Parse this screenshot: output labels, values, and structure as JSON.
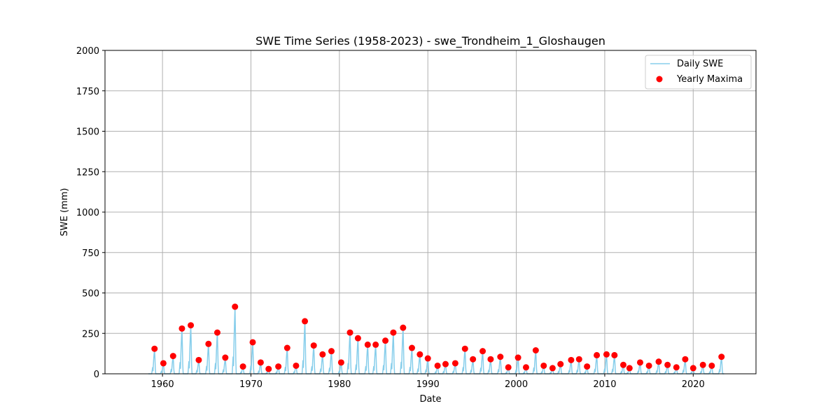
{
  "chart_data": {
    "type": "line",
    "title": "SWE Time Series (1958-2023) - swe_Trondheim_1_Gloshaugen",
    "xlabel": "Date",
    "ylabel": "SWE (mm)",
    "xlim": [
      1953.5,
      2027.1
    ],
    "ylim": [
      0,
      2000
    ],
    "x_ticks": [
      1960,
      1970,
      1980,
      1990,
      2000,
      2010,
      2020
    ],
    "y_ticks": [
      0,
      250,
      500,
      750,
      1000,
      1250,
      1500,
      1750,
      2000
    ],
    "grid": true,
    "legend_position": "top-right",
    "colors": {
      "daily": "#87ceeb",
      "maxima": "#ff0000"
    },
    "series": [
      {
        "name": "Daily SWE",
        "kind": "line",
        "peaks": [
          [
            1959.1,
            155
          ],
          [
            1960.1,
            65
          ],
          [
            1961.2,
            110
          ],
          [
            1962.2,
            280
          ],
          [
            1963.2,
            300
          ],
          [
            1964.1,
            85
          ],
          [
            1965.2,
            185
          ],
          [
            1966.2,
            255
          ],
          [
            1967.1,
            100
          ],
          [
            1968.2,
            415
          ],
          [
            1969.1,
            45
          ],
          [
            1970.2,
            195
          ],
          [
            1971.1,
            70
          ],
          [
            1972.0,
            30
          ],
          [
            1973.1,
            45
          ],
          [
            1974.1,
            160
          ],
          [
            1975.1,
            50
          ],
          [
            1976.1,
            325
          ],
          [
            1977.1,
            175
          ],
          [
            1978.1,
            120
          ],
          [
            1979.1,
            140
          ],
          [
            1980.2,
            70
          ],
          [
            1981.2,
            255
          ],
          [
            1982.1,
            220
          ],
          [
            1983.2,
            180
          ],
          [
            1984.1,
            180
          ],
          [
            1985.2,
            205
          ],
          [
            1986.1,
            255
          ],
          [
            1987.2,
            285
          ],
          [
            1988.2,
            160
          ],
          [
            1989.1,
            120
          ],
          [
            1990.0,
            95
          ],
          [
            1991.1,
            50
          ],
          [
            1992.0,
            60
          ],
          [
            1993.1,
            65
          ],
          [
            1994.2,
            155
          ],
          [
            1995.1,
            90
          ],
          [
            1996.2,
            140
          ],
          [
            1997.1,
            90
          ],
          [
            1998.2,
            105
          ],
          [
            1999.1,
            40
          ],
          [
            2000.2,
            100
          ],
          [
            2001.1,
            40
          ],
          [
            2002.2,
            145
          ],
          [
            2003.1,
            50
          ],
          [
            2004.1,
            35
          ],
          [
            2005.0,
            60
          ],
          [
            2006.2,
            85
          ],
          [
            2007.1,
            90
          ],
          [
            2008.0,
            45
          ],
          [
            2009.1,
            115
          ],
          [
            2010.2,
            120
          ],
          [
            2011.1,
            115
          ],
          [
            2012.1,
            55
          ],
          [
            2012.8,
            35
          ],
          [
            2014.0,
            70
          ],
          [
            2015.0,
            50
          ],
          [
            2016.1,
            75
          ],
          [
            2017.1,
            55
          ],
          [
            2018.1,
            40
          ],
          [
            2019.1,
            90
          ],
          [
            2020.0,
            35
          ],
          [
            2021.1,
            55
          ],
          [
            2022.1,
            50
          ],
          [
            2023.2,
            105
          ]
        ]
      },
      {
        "name": "Yearly Maxima",
        "kind": "scatter",
        "points": [
          [
            1959.1,
            155
          ],
          [
            1960.1,
            65
          ],
          [
            1961.2,
            110
          ],
          [
            1962.2,
            280
          ],
          [
            1963.2,
            300
          ],
          [
            1964.1,
            85
          ],
          [
            1965.2,
            185
          ],
          [
            1966.2,
            255
          ],
          [
            1967.1,
            100
          ],
          [
            1968.2,
            415
          ],
          [
            1969.1,
            45
          ],
          [
            1970.2,
            195
          ],
          [
            1971.1,
            70
          ],
          [
            1972.0,
            30
          ],
          [
            1973.1,
            45
          ],
          [
            1974.1,
            160
          ],
          [
            1975.1,
            50
          ],
          [
            1976.1,
            325
          ],
          [
            1977.1,
            175
          ],
          [
            1978.1,
            120
          ],
          [
            1979.1,
            140
          ],
          [
            1980.2,
            70
          ],
          [
            1981.2,
            255
          ],
          [
            1982.1,
            220
          ],
          [
            1983.2,
            180
          ],
          [
            1984.1,
            180
          ],
          [
            1985.2,
            205
          ],
          [
            1986.1,
            255
          ],
          [
            1987.2,
            285
          ],
          [
            1988.2,
            160
          ],
          [
            1989.1,
            120
          ],
          [
            1990.0,
            95
          ],
          [
            1991.1,
            50
          ],
          [
            1992.0,
            60
          ],
          [
            1993.1,
            65
          ],
          [
            1994.2,
            155
          ],
          [
            1995.1,
            90
          ],
          [
            1996.2,
            140
          ],
          [
            1997.1,
            90
          ],
          [
            1998.2,
            105
          ],
          [
            1999.1,
            40
          ],
          [
            2000.2,
            100
          ],
          [
            2001.1,
            40
          ],
          [
            2002.2,
            145
          ],
          [
            2003.1,
            50
          ],
          [
            2004.1,
            35
          ],
          [
            2005.0,
            60
          ],
          [
            2006.2,
            85
          ],
          [
            2007.1,
            90
          ],
          [
            2008.0,
            45
          ],
          [
            2009.1,
            115
          ],
          [
            2010.2,
            120
          ],
          [
            2011.1,
            115
          ],
          [
            2012.1,
            55
          ],
          [
            2012.8,
            35
          ],
          [
            2014.0,
            70
          ],
          [
            2015.0,
            50
          ],
          [
            2016.1,
            75
          ],
          [
            2017.1,
            55
          ],
          [
            2018.1,
            40
          ],
          [
            2019.1,
            90
          ],
          [
            2020.0,
            35
          ],
          [
            2021.1,
            55
          ],
          [
            2022.1,
            50
          ],
          [
            2023.2,
            105
          ]
        ]
      }
    ]
  }
}
